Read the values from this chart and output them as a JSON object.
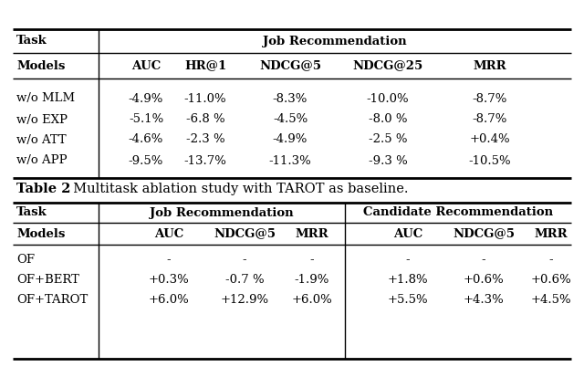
{
  "table1": {
    "task_header": "Job Recommendation",
    "col_headers": [
      "Models",
      "AUC",
      "HR@1",
      "NDCG@5",
      "NDCG@25",
      "MRR"
    ],
    "rows": [
      [
        "w/o MLM",
        "-4.9%",
        "-11.0%",
        "-8.3%",
        "-10.0%",
        "-8.7%"
      ],
      [
        "w/o EXP",
        "-5.1%",
        "-6.8 %",
        "-4.5%",
        "-8.0 %",
        "-8.7%"
      ],
      [
        "w/o ATT",
        "-4.6%",
        "-2.3 %",
        "-4.9%",
        "-2.5 %",
        "+0.4%"
      ],
      [
        "w/o APP",
        "-9.5%",
        "-13.7%",
        "-11.3%",
        "-9.3 %",
        "-10.5%"
      ]
    ]
  },
  "table2": {
    "caption_bold": "Table 2",
    "caption_normal": ". Multitask ablation study with TAROT as baseline.",
    "task_header_job": "Job Recommendation",
    "task_header_cand": "Candidate Recommendation",
    "col_headers_job": [
      "AUC",
      "NDCG@5",
      "MRR"
    ],
    "col_headers_cand": [
      "AUC",
      "NDCG@5",
      "MRR"
    ],
    "rows": [
      [
        "OF",
        "-",
        "-",
        "-",
        "-",
        "-",
        "-"
      ],
      [
        "OF+BERT",
        "+0.3%",
        "-0.7 %",
        "-1.9%",
        "+1.8%",
        "+0.6%",
        "+0.6%"
      ],
      [
        "OF+TAROT",
        "+6.0%",
        "+12.9%",
        "+6.0%",
        "+5.5%",
        "+4.3%",
        "+4.5%"
      ]
    ]
  },
  "bg_color": "#ffffff",
  "text_color": "#000000",
  "font_size": 9.5,
  "header_font_size": 9.5,
  "caption_font_size": 10.5
}
